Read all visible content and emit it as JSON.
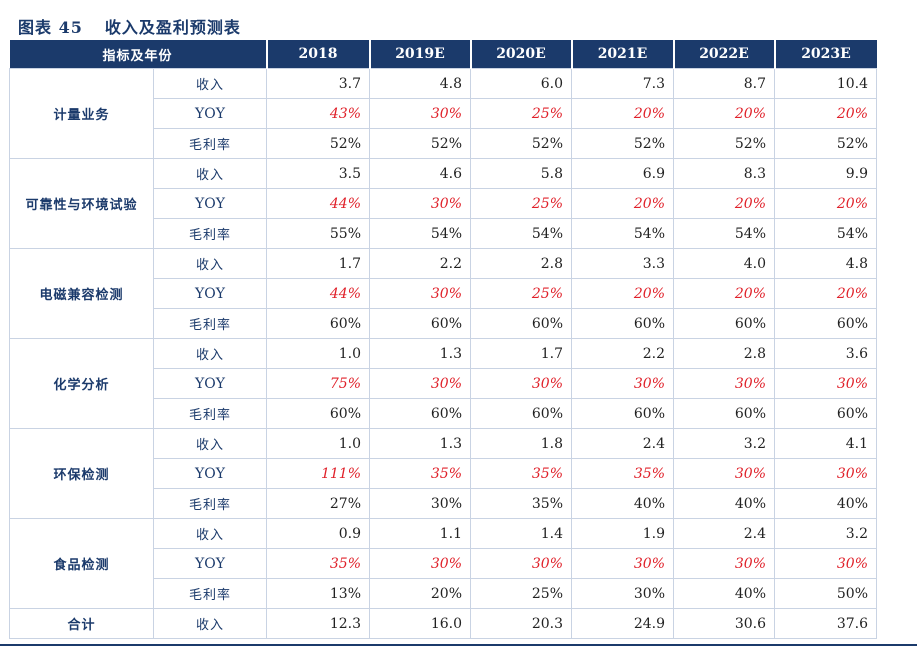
{
  "figure_label": "图表 45",
  "figure_title": "收入及盈利预测表",
  "header": [
    "指标及年份",
    "2018",
    "2019E",
    "2020E",
    "2021E",
    "2022E",
    "2023E"
  ],
  "accent_color": "#1b3a6b",
  "negative_color": "#e0212a",
  "groups": [
    {
      "name": "计量业务",
      "rows": [
        {
          "label": "收入",
          "values": [
            "3.7",
            "4.8",
            "6.0",
            "7.3",
            "8.7",
            "10.4"
          ]
        },
        {
          "label": "YOY",
          "values": [
            "43%",
            "30%",
            "25%",
            "20%",
            "20%",
            "20%"
          ]
        },
        {
          "label": "毛利率",
          "values": [
            "52%",
            "52%",
            "52%",
            "52%",
            "52%",
            "52%"
          ]
        }
      ]
    },
    {
      "name": "可靠性与环境试验",
      "rows": [
        {
          "label": "收入",
          "values": [
            "3.5",
            "4.6",
            "5.8",
            "6.9",
            "8.3",
            "9.9"
          ]
        },
        {
          "label": "YOY",
          "values": [
            "44%",
            "30%",
            "25%",
            "20%",
            "20%",
            "20%"
          ]
        },
        {
          "label": "毛利率",
          "values": [
            "55%",
            "54%",
            "54%",
            "54%",
            "54%",
            "54%"
          ]
        }
      ]
    },
    {
      "name": "电磁兼容检测",
      "rows": [
        {
          "label": "收入",
          "values": [
            "1.7",
            "2.2",
            "2.8",
            "3.3",
            "4.0",
            "4.8"
          ]
        },
        {
          "label": "YOY",
          "values": [
            "44%",
            "30%",
            "25%",
            "20%",
            "20%",
            "20%"
          ]
        },
        {
          "label": "毛利率",
          "values": [
            "60%",
            "60%",
            "60%",
            "60%",
            "60%",
            "60%"
          ]
        }
      ]
    },
    {
      "name": "化学分析",
      "rows": [
        {
          "label": "收入",
          "values": [
            "1.0",
            "1.3",
            "1.7",
            "2.2",
            "2.8",
            "3.6"
          ]
        },
        {
          "label": "YOY",
          "values": [
            "75%",
            "30%",
            "30%",
            "30%",
            "30%",
            "30%"
          ]
        },
        {
          "label": "毛利率",
          "values": [
            "60%",
            "60%",
            "60%",
            "60%",
            "60%",
            "60%"
          ]
        }
      ]
    },
    {
      "name": "环保检测",
      "rows": [
        {
          "label": "收入",
          "values": [
            "1.0",
            "1.3",
            "1.8",
            "2.4",
            "3.2",
            "4.1"
          ]
        },
        {
          "label": "YOY",
          "values": [
            "111%",
            "35%",
            "35%",
            "35%",
            "30%",
            "30%"
          ]
        },
        {
          "label": "毛利率",
          "values": [
            "27%",
            "30%",
            "35%",
            "40%",
            "40%",
            "40%"
          ]
        }
      ]
    },
    {
      "name": "食品检测",
      "rows": [
        {
          "label": "收入",
          "values": [
            "0.9",
            "1.1",
            "1.4",
            "1.9",
            "2.4",
            "3.2"
          ]
        },
        {
          "label": "YOY",
          "values": [
            "35%",
            "30%",
            "30%",
            "30%",
            "30%",
            "30%"
          ]
        },
        {
          "label": "毛利率",
          "values": [
            "13%",
            "20%",
            "25%",
            "30%",
            "40%",
            "50%"
          ]
        }
      ]
    }
  ],
  "total": {
    "name": "合计",
    "label": "收入",
    "values": [
      "12.3",
      "16.0",
      "20.3",
      "24.9",
      "30.6",
      "37.6"
    ]
  }
}
